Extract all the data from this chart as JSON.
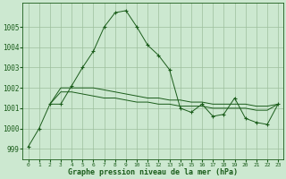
{
  "background_color": "#cce8d0",
  "grid_color": "#9dbf9d",
  "line_color": "#1a5c1a",
  "title": "Graphe pression niveau de la mer (hPa)",
  "xlim": [
    -0.5,
    23.5
  ],
  "ylim": [
    998.5,
    1006.2
  ],
  "yticks": [
    999,
    1000,
    1001,
    1002,
    1003,
    1004,
    1005
  ],
  "xticks": [
    0,
    1,
    2,
    3,
    4,
    5,
    6,
    7,
    8,
    9,
    10,
    11,
    12,
    13,
    14,
    15,
    16,
    17,
    18,
    19,
    20,
    21,
    22,
    23
  ],
  "main_x": [
    0,
    1,
    2,
    3,
    4,
    5,
    6,
    7,
    8,
    9,
    10,
    11,
    12,
    13,
    14,
    15,
    16,
    17,
    18,
    19,
    20,
    21,
    22,
    23
  ],
  "main_y": [
    999.1,
    1000.0,
    1001.2,
    1001.2,
    1002.1,
    1003.0,
    1003.8,
    1005.0,
    1005.7,
    1005.8,
    1005.0,
    1004.1,
    1003.6,
    1002.9,
    1001.0,
    1000.8,
    1001.2,
    1000.6,
    1000.7,
    1001.5,
    1000.5,
    1000.3,
    1000.2,
    1001.2
  ],
  "flat1_x": [
    2,
    3,
    4,
    5,
    6,
    7,
    8,
    9,
    10,
    11,
    12,
    13,
    14,
    15,
    16,
    17,
    18,
    19,
    20,
    21,
    22,
    23
  ],
  "flat1_y": [
    1001.2,
    1002.0,
    1002.0,
    1002.0,
    1002.0,
    1001.9,
    1001.8,
    1001.7,
    1001.6,
    1001.5,
    1001.5,
    1001.4,
    1001.4,
    1001.3,
    1001.3,
    1001.2,
    1001.2,
    1001.2,
    1001.2,
    1001.1,
    1001.1,
    1001.2
  ],
  "flat2_x": [
    2,
    3,
    4,
    5,
    6,
    7,
    8,
    9,
    10,
    11,
    12,
    13,
    14,
    15,
    16,
    17,
    18,
    19,
    20,
    21,
    22,
    23
  ],
  "flat2_y": [
    1001.2,
    1001.8,
    1001.8,
    1001.7,
    1001.6,
    1001.5,
    1001.5,
    1001.4,
    1001.3,
    1001.3,
    1001.2,
    1001.2,
    1001.1,
    1001.1,
    1001.1,
    1001.0,
    1001.0,
    1001.0,
    1001.0,
    1000.9,
    1000.9,
    1001.2
  ]
}
